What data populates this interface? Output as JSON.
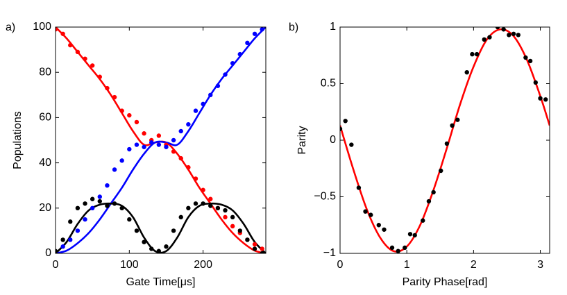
{
  "chart_data": [
    {
      "type": "line",
      "label": "a)",
      "xlabel": "Gate Time[μs]",
      "ylabel": "Populations",
      "xlim": [
        0,
        285
      ],
      "ylim": [
        0,
        100
      ],
      "xticks": [
        0,
        100,
        200
      ],
      "yticks": [
        0,
        20,
        40,
        60,
        80,
        100
      ],
      "series": [
        {
          "style": "line",
          "color": "#ff0000",
          "x": [
            0,
            15,
            30,
            45,
            60,
            75,
            90,
            105,
            120,
            135,
            150,
            165,
            180,
            195,
            210,
            225,
            240,
            255,
            270,
            285
          ],
          "values": [
            100,
            95,
            89,
            83,
            77,
            70,
            62,
            54,
            48,
            49,
            49,
            44,
            37,
            29,
            22,
            15,
            9,
            4.5,
            1.2,
            0
          ]
        },
        {
          "style": "line",
          "color": "#0000ff",
          "x": [
            0,
            15,
            30,
            45,
            60,
            75,
            90,
            105,
            120,
            135,
            150,
            165,
            180,
            195,
            210,
            225,
            240,
            255,
            270,
            285
          ],
          "values": [
            0,
            1.2,
            4.5,
            9,
            15,
            22,
            29,
            37,
            44,
            49,
            49,
            48,
            54,
            62,
            70,
            77,
            83,
            89,
            95,
            100
          ]
        },
        {
          "style": "line",
          "color": "#000000",
          "x": [
            0,
            15,
            30,
            45,
            60,
            75,
            90,
            105,
            120,
            135,
            150,
            165,
            180,
            195,
            210,
            225,
            240,
            255,
            270,
            285
          ],
          "values": [
            0,
            5,
            13,
            19,
            21.5,
            22,
            21,
            16,
            7,
            1,
            1,
            7,
            16,
            21,
            22,
            21.5,
            19,
            13,
            5,
            0
          ]
        },
        {
          "style": "markers",
          "color": "#ff0000",
          "x": [
            0,
            10,
            20,
            30,
            40,
            50,
            60,
            70,
            80,
            90,
            100,
            110,
            120,
            130,
            140,
            150,
            160,
            170,
            180,
            190,
            200,
            210,
            220,
            230,
            240,
            250,
            260,
            270,
            280
          ],
          "values": [
            99,
            97,
            92,
            89,
            86,
            83,
            78,
            73,
            69,
            63,
            61,
            58,
            53,
            50,
            52,
            48,
            45,
            42,
            38,
            33,
            28,
            24,
            20,
            16,
            12,
            9,
            6,
            4,
            2
          ]
        },
        {
          "style": "markers",
          "color": "#0000ff",
          "x": [
            0,
            10,
            20,
            30,
            40,
            50,
            60,
            70,
            80,
            90,
            100,
            110,
            120,
            130,
            140,
            150,
            160,
            170,
            180,
            190,
            200,
            210,
            220,
            230,
            240,
            250,
            260,
            270,
            280
          ],
          "values": [
            0,
            3,
            6,
            10,
            15,
            20,
            25,
            30,
            37,
            41,
            46,
            48,
            47,
            49,
            48,
            47,
            50,
            54,
            57,
            63,
            66,
            70,
            74,
            79,
            84,
            88,
            93,
            97,
            99
          ]
        },
        {
          "style": "markers",
          "color": "#000000",
          "x": [
            0,
            10,
            20,
            30,
            40,
            50,
            60,
            70,
            80,
            90,
            100,
            110,
            120,
            130,
            140,
            150,
            160,
            170,
            180,
            190,
            200,
            210,
            220,
            230,
            240,
            250,
            260,
            270,
            280
          ],
          "values": [
            1,
            6,
            14,
            20,
            22,
            24,
            23,
            21,
            22,
            20,
            15,
            10,
            5,
            2,
            1,
            3,
            10,
            16,
            20,
            22,
            22,
            21,
            20,
            19,
            16,
            10,
            6,
            2,
            0
          ]
        }
      ]
    },
    {
      "type": "line",
      "label": "b)",
      "xlabel": "Parity Phase[rad]",
      "ylabel": "Parity",
      "xlim": [
        0,
        3.14
      ],
      "ylim": [
        -1,
        1
      ],
      "xticks": [
        0,
        1,
        2,
        3
      ],
      "yticks": [
        {
          "value": -1,
          "label": "−1"
        },
        {
          "value": -0.5,
          "label": "−0.5"
        },
        0,
        0.5,
        1
      ],
      "series": [
        {
          "style": "line",
          "color": "#ff0000",
          "x": [
            0,
            0.2,
            0.4,
            0.6,
            0.8,
            1.0,
            1.2,
            1.4,
            1.6,
            1.8,
            2.0,
            2.2,
            2.4,
            2.6,
            2.8,
            3.0,
            3.14
          ],
          "values": [
            0.13,
            -0.26,
            -0.61,
            -0.86,
            -0.98,
            -0.94,
            -0.75,
            -0.44,
            -0.07,
            0.32,
            0.65,
            0.89,
            0.98,
            0.92,
            0.71,
            0.39,
            0.13
          ]
        },
        {
          "style": "markers",
          "color": "#000000",
          "x": [
            0,
            0.08,
            0.17,
            0.28,
            0.38,
            0.46,
            0.58,
            0.66,
            0.78,
            0.87,
            0.97,
            1.05,
            1.12,
            1.24,
            1.33,
            1.4,
            1.51,
            1.6,
            1.68,
            1.76,
            1.9,
            1.98,
            2.05,
            2.16,
            2.24,
            2.36,
            2.45,
            2.53,
            2.6,
            2.67,
            2.78,
            2.85,
            2.93,
            3.0,
            3.08
          ],
          "values": [
            0.1,
            0.17,
            -0.04,
            -0.42,
            -0.63,
            -0.66,
            -0.75,
            -0.79,
            -0.95,
            -0.98,
            -0.95,
            -0.83,
            -0.84,
            -0.71,
            -0.54,
            -0.46,
            -0.27,
            -0.03,
            0.13,
            0.18,
            0.6,
            0.76,
            0.76,
            0.89,
            0.91,
            1.0,
            0.98,
            0.93,
            0.94,
            0.93,
            0.73,
            0.7,
            0.51,
            0.37,
            0.36
          ]
        }
      ]
    }
  ]
}
